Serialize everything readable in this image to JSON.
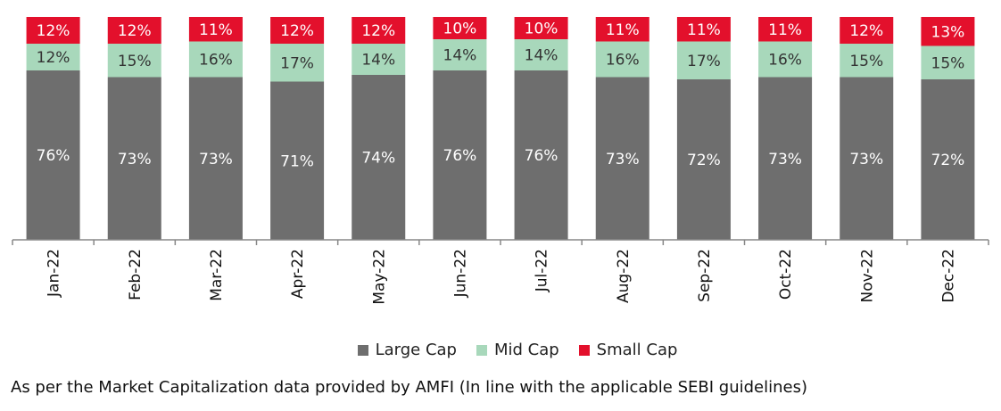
{
  "chart_data": {
    "type": "bar",
    "stacked": true,
    "categories": [
      "Jan-22",
      "Feb-22",
      "Mar-22",
      "Apr-22",
      "May-22",
      "Jun-22",
      "Jul-22",
      "Aug-22",
      "Sep-22",
      "Oct-22",
      "Nov-22",
      "Dec-22"
    ],
    "series": [
      {
        "name": "Large Cap",
        "values": [
          76,
          73,
          73,
          71,
          74,
          76,
          76,
          73,
          72,
          73,
          73,
          72
        ],
        "labels": [
          "76%",
          "73%",
          "73%",
          "71%",
          "74%",
          "76%",
          "76%",
          "73%",
          "72%",
          "73%",
          "73%",
          "72%"
        ]
      },
      {
        "name": "Mid Cap",
        "values": [
          12,
          15,
          16,
          17,
          14,
          14,
          14,
          16,
          17,
          16,
          15,
          15
        ],
        "labels": [
          "12%",
          "15%",
          "16%",
          "17%",
          "14%",
          "14%",
          "14%",
          "16%",
          "17%",
          "16%",
          "15%",
          "15%"
        ]
      },
      {
        "name": "Small Cap",
        "values": [
          12,
          12,
          11,
          12,
          12,
          10,
          10,
          11,
          11,
          11,
          12,
          13
        ],
        "labels": [
          "12%",
          "12%",
          "11%",
          "12%",
          "12%",
          "10%",
          "10%",
          "11%",
          "11%",
          "11%",
          "12%",
          "13%"
        ]
      }
    ],
    "colors": {
      "Large Cap": "#6e6e6e",
      "Mid Cap": "#a8d8bb",
      "Small Cap": "#e3102c"
    },
    "label_colors": {
      "Large Cap": "#ffffff",
      "Mid Cap": "#333333",
      "Small Cap": "#ffffff"
    },
    "legend_position": "bottom",
    "grid": false
  },
  "footnote": "As per the Market Capitalization data provided by AMFI (In line with the applicable SEBI guidelines)"
}
